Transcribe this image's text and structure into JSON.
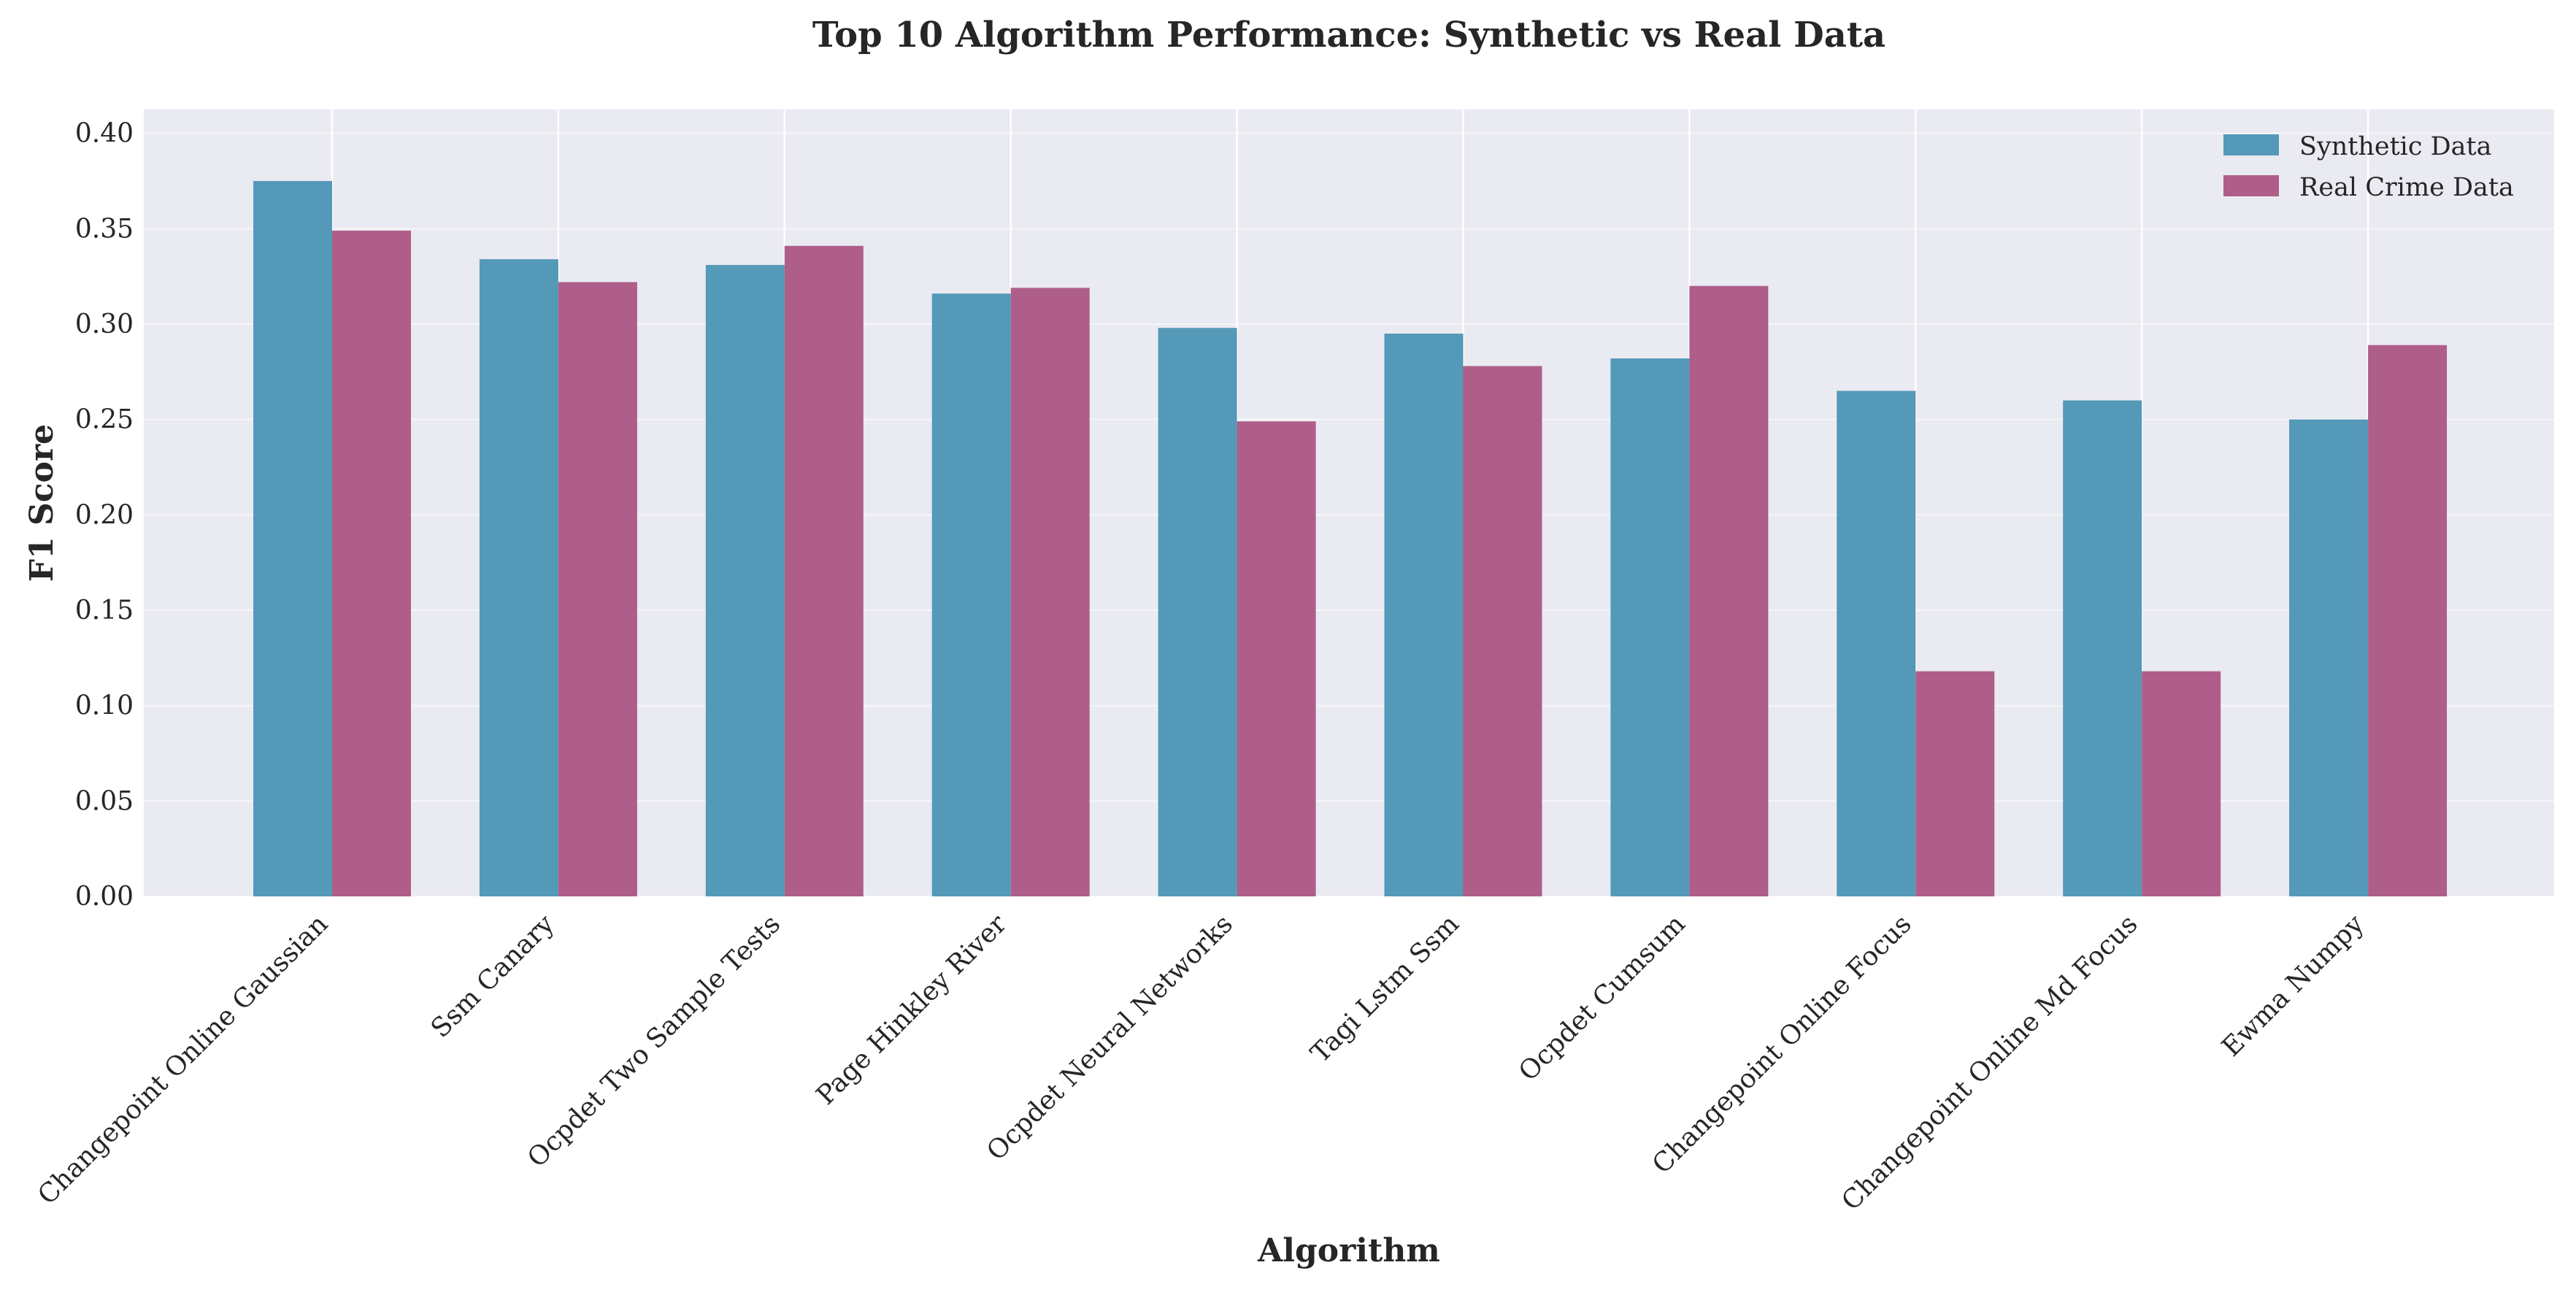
{
  "chart_data": {
    "type": "bar",
    "title": "Top 10 Algorithm Performance: Synthetic vs Real Data",
    "xlabel": "Algorithm",
    "ylabel": "F1 Score",
    "ylim": [
      0,
      0.4125
    ],
    "yticks": [
      0.0,
      0.05,
      0.1,
      0.15,
      0.2,
      0.25,
      0.3,
      0.35,
      0.4
    ],
    "ytick_labels": [
      "0.00",
      "0.05",
      "0.10",
      "0.15",
      "0.20",
      "0.25",
      "0.30",
      "0.35",
      "0.40"
    ],
    "grid": true,
    "legend_position": "top-right",
    "categories": [
      "Changepoint Online Gaussian",
      "Ssm Canary",
      "Ocpdet Two Sample Tests",
      "Page Hinkley River",
      "Ocpdet Neural Networks",
      "Tagi Lstm Ssm",
      "Ocpdet Cumsum",
      "Changepoint Online Focus",
      "Changepoint Online Md Focus",
      "Ewma Numpy"
    ],
    "series": [
      {
        "name": "Synthetic Data",
        "color": "#5499b8",
        "values": [
          0.375,
          0.334,
          0.331,
          0.316,
          0.298,
          0.295,
          0.282,
          0.265,
          0.26,
          0.25
        ]
      },
      {
        "name": "Real Crime Data",
        "color": "#ae5e89",
        "values": [
          0.349,
          0.322,
          0.341,
          0.319,
          0.249,
          0.278,
          0.32,
          0.118,
          0.118,
          0.289
        ]
      }
    ]
  }
}
